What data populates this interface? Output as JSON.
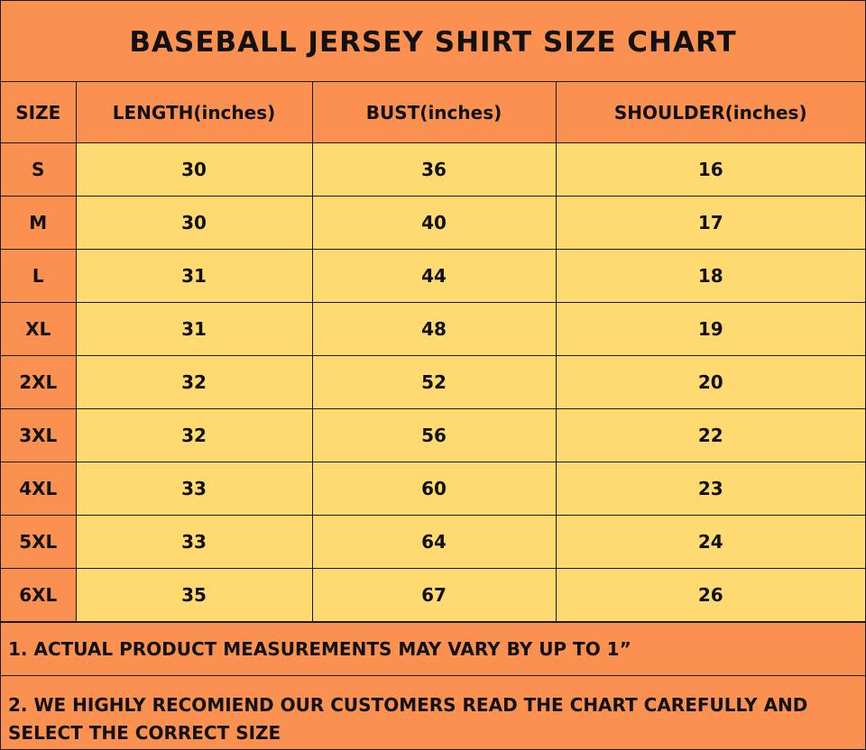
{
  "title": "BASEBALL JERSEY SHIRT SIZE CHART",
  "headers": {
    "size": "SIZE",
    "length": "LENGTH(inches)",
    "bust": "BUST(inches)",
    "shoulder": "SHOULDER(inches)"
  },
  "rows": [
    {
      "size": "S",
      "length": "30",
      "bust": "36",
      "shoulder": "16"
    },
    {
      "size": "M",
      "length": "30",
      "bust": "40",
      "shoulder": "17"
    },
    {
      "size": "L",
      "length": "31",
      "bust": "44",
      "shoulder": "18"
    },
    {
      "size": "XL",
      "length": "31",
      "bust": "48",
      "shoulder": "19"
    },
    {
      "size": "2XL",
      "length": "32",
      "bust": "52",
      "shoulder": "20"
    },
    {
      "size": "3XL",
      "length": "32",
      "bust": "56",
      "shoulder": "22"
    },
    {
      "size": "4XL",
      "length": "33",
      "bust": "60",
      "shoulder": "23"
    },
    {
      "size": "5XL",
      "length": "33",
      "bust": "64",
      "shoulder": "24"
    },
    {
      "size": "6XL",
      "length": "35",
      "bust": "67",
      "shoulder": "26"
    }
  ],
  "notes": {
    "note1": "1. ACTUAL PRODUCT MEASUREMENTS MAY VARY BY UP TO 1”",
    "note2": "2. WE HIGHLY RECOMIEND OUR CUSTOMERS READ THE CHART CAREFULLY AND SELECT THE CORRECT SIZE"
  },
  "colors": {
    "header_orange": "#FA9150",
    "cell_yellow": "#FFDA71",
    "border": "#1a1a1a"
  }
}
